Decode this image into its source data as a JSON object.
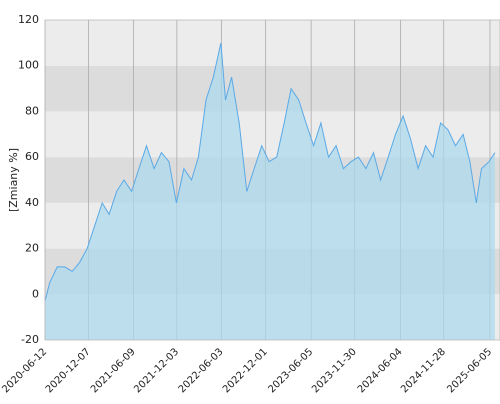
{
  "chart_data": {
    "type": "area",
    "y_label": "[Zmiany %]",
    "x": [
      "2020-06-12",
      "2020-07-01",
      "2020-08-01",
      "2020-09-01",
      "2020-10-01",
      "2020-11-01",
      "2020-12-01",
      "2021-01-01",
      "2021-02-01",
      "2021-03-01",
      "2021-04-01",
      "2021-05-01",
      "2021-06-01",
      "2021-07-01",
      "2021-08-01",
      "2021-09-01",
      "2021-10-01",
      "2021-11-01",
      "2021-12-01",
      "2022-01-01",
      "2022-02-01",
      "2022-03-01",
      "2022-04-01",
      "2022-05-01",
      "2022-06-01",
      "2022-06-20",
      "2022-07-15",
      "2022-08-15",
      "2022-09-15",
      "2022-10-15",
      "2022-11-15",
      "2022-12-15",
      "2023-01-15",
      "2023-02-15",
      "2023-03-15",
      "2023-04-15",
      "2023-05-15",
      "2023-06-15",
      "2023-07-15",
      "2023-08-15",
      "2023-09-15",
      "2023-10-15",
      "2023-11-15",
      "2023-12-15",
      "2024-01-15",
      "2024-02-15",
      "2024-03-15",
      "2024-04-15",
      "2024-05-15",
      "2024-06-15",
      "2024-07-15",
      "2024-08-15",
      "2024-09-15",
      "2024-10-15",
      "2024-11-15",
      "2024-12-15",
      "2025-01-15",
      "2025-02-15",
      "2025-03-15",
      "2025-04-10",
      "2025-05-01",
      "2025-06-01",
      "2025-06-25"
    ],
    "values": [
      -3,
      5,
      12,
      12,
      10,
      14,
      20,
      30,
      40,
      35,
      45,
      50,
      45,
      55,
      65,
      55,
      62,
      58,
      40,
      55,
      50,
      60,
      85,
      95,
      110,
      85,
      95,
      75,
      45,
      55,
      65,
      58,
      60,
      75,
      90,
      85,
      75,
      65,
      75,
      60,
      65,
      55,
      58,
      60,
      55,
      62,
      50,
      60,
      70,
      78,
      68,
      55,
      65,
      60,
      75,
      72,
      65,
      70,
      58,
      40,
      55,
      58,
      62
    ],
    "color": "#5aa9e6",
    "fill": "#a8d8ee",
    "xlim": [
      "2020-06-12",
      "2025-07-16"
    ],
    "xticks": [
      "2020-06-12",
      "2020-12-07",
      "2021-06-09",
      "2021-12-03",
      "2022-06-03",
      "2022-12-01",
      "2023-06-05",
      "2023-11-30",
      "2024-06-04",
      "2024-11-28",
      "2025-06-05"
    ],
    "ylim": [
      -20,
      120
    ],
    "yticks": [
      -20,
      0,
      20,
      40,
      60,
      80,
      100,
      120
    ],
    "grid": true
  }
}
